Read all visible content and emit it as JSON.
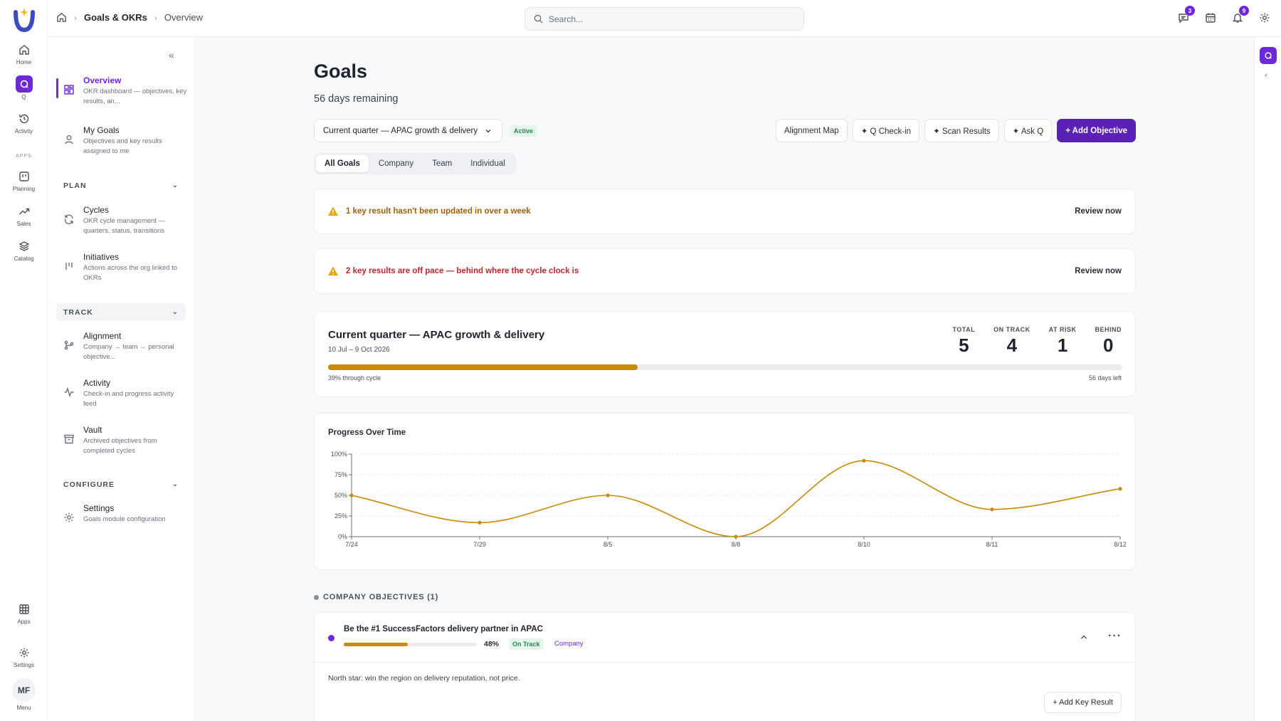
{
  "rail": {
    "items": [
      {
        "label": "Home",
        "icon": "home-icon"
      },
      {
        "label": "Q",
        "icon": "q-icon"
      },
      {
        "label": "Activity",
        "icon": "history-icon"
      },
      {
        "label": "Planning",
        "icon": "planning-icon"
      },
      {
        "label": "Sales",
        "icon": "trend-icon"
      },
      {
        "label": "Catalog",
        "icon": "layers-icon"
      },
      {
        "label": "Apps",
        "icon": "grid-icon"
      },
      {
        "label": "Settings",
        "icon": "gear-icon"
      }
    ],
    "apps_heading": "APPS",
    "user_initials": "MF",
    "menu_label": "Menu"
  },
  "topbar": {
    "breadcrumb": [
      "Goals & OKRs",
      "Overview"
    ],
    "search_placeholder": "Search...",
    "messages_count": "3",
    "notifications_count": "9"
  },
  "sidebar": {
    "items": [
      {
        "title": "Overview",
        "desc": "OKR dashboard — objectives, key results, an...",
        "icon": "dashboard-icon"
      },
      {
        "title": "My Goals",
        "desc": "Objectives and key results assigned to me",
        "icon": "user-icon"
      },
      {
        "title": "Cycles",
        "desc": "OKR cycle management — quarters, status, transitions",
        "icon": "refresh-icon"
      },
      {
        "title": "Initiatives",
        "desc": "Actions across the org linked to OKRs",
        "icon": "initiatives-icon"
      },
      {
        "title": "Alignment",
        "desc": "Company → team → personal objective...",
        "icon": "branch-icon"
      },
      {
        "title": "Activity",
        "desc": "Check-in and progress activity feed",
        "icon": "pulse-icon"
      },
      {
        "title": "Vault",
        "desc": "Archived objectives from completed cycles",
        "icon": "archive-icon"
      },
      {
        "title": "Settings",
        "desc": "Goals module configuration",
        "icon": "gear-icon"
      }
    ],
    "sections": [
      "PLAN",
      "TRACK",
      "CONFIGURE"
    ]
  },
  "main": {
    "title": "Goals",
    "subtitle": "56 days remaining",
    "quarter_select": "Current quarter — APAC growth & delivery",
    "quarter_status": "Active",
    "actions": [
      "Alignment Map",
      "✦ Q Check-in",
      "✦ Scan Results",
      "✦ Ask Q",
      "+ Add Objective"
    ],
    "tabs": [
      "All Goals",
      "Company",
      "Team",
      "Individual"
    ],
    "alerts": [
      {
        "message": "1 key result hasn't been updated in over a week",
        "link": "Review now",
        "color": "#a16207"
      },
      {
        "message": "2 key results are off pace — behind where the cycle clock is",
        "link": "Review now",
        "color": "#c0262d"
      }
    ],
    "cycle": {
      "title": "Current quarter — APAC growth & delivery",
      "dates": "10 Jul – 9 Oct 2026",
      "stats": [
        {
          "label": "TOTAL",
          "value": "5"
        },
        {
          "label": "ON TRACK",
          "value": "4"
        },
        {
          "label": "AT RISK",
          "value": "1"
        },
        {
          "label": "BEHIND",
          "value": "0"
        }
      ],
      "progress": 0.39,
      "progress_label": "39% through cycle",
      "days_left": "56 days left"
    },
    "section_heading": "COMPANY OBJECTIVES (1)",
    "objective": {
      "title": "Be the #1 SuccessFactors delivery partner in APAC",
      "progress": 0.48,
      "percent": "48%",
      "status": "On Track",
      "owner": "Company",
      "north_star": "North star: win the region on delivery reputation, not price.",
      "add_kr": "+ Add Key Result"
    }
  },
  "colors": {
    "accent": "#6d28d9",
    "progress": "#c98a06",
    "success": "#1f8a4c"
  },
  "chart_data": {
    "type": "line",
    "title": "Progress Over Time",
    "x": [
      "7/24",
      "7/29",
      "8/5",
      "8/8",
      "8/10",
      "8/11",
      "8/12"
    ],
    "series": [
      {
        "values": [
          50,
          17,
          50,
          0,
          92,
          33,
          58
        ]
      }
    ],
    "yticks": [
      "0%",
      "25%",
      "50%",
      "75%",
      "100%"
    ],
    "ylim": [
      0,
      100
    ],
    "grid": true
  }
}
